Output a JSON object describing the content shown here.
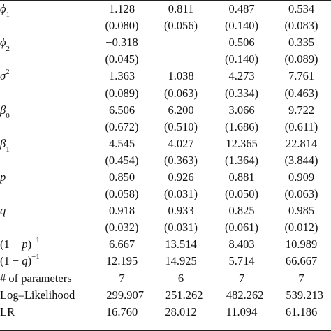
{
  "table": {
    "rows": [
      {
        "label": "ϕ1",
        "values": [
          "1.128",
          "0.811",
          "0.487",
          "0.534"
        ]
      },
      {
        "label": "",
        "values": [
          "(0.080)",
          "(0.056)",
          "(0.140)",
          "(0.083)"
        ]
      },
      {
        "label": "ϕ2",
        "values": [
          "−0.318",
          "",
          "0.506",
          "0.335"
        ]
      },
      {
        "label": "",
        "values": [
          "(0.045)",
          "",
          "(0.140)",
          "(0.089)"
        ]
      },
      {
        "label": "σ2",
        "values": [
          "1.363",
          "1.038",
          "4.273",
          "7.761"
        ]
      },
      {
        "label": "",
        "values": [
          "(0.089)",
          "(0.063)",
          "(0.334)",
          "(0.463)"
        ]
      },
      {
        "label": "β0",
        "values": [
          "6.506",
          "6.200",
          "3.066",
          "9.722"
        ]
      },
      {
        "label": "",
        "values": [
          "(0.672)",
          "(0.510)",
          "(1.686)",
          "(0.611)"
        ]
      },
      {
        "label": "β1",
        "values": [
          "4.545",
          "4.027",
          "12.365",
          "22.814"
        ]
      },
      {
        "label": "",
        "values": [
          "(0.454)",
          "(0.363)",
          "(1.364)",
          "(3.844)"
        ]
      },
      {
        "label": "p",
        "values": [
          "0.850",
          "0.926",
          "0.881",
          "0.909"
        ]
      },
      {
        "label": "",
        "values": [
          "(0.058)",
          "(0.031)",
          "(0.050)",
          "(0.063)"
        ]
      },
      {
        "label": "q",
        "values": [
          "0.918",
          "0.933",
          "0.825",
          "0.985"
        ]
      },
      {
        "label": "",
        "values": [
          "(0.032)",
          "(0.031)",
          "(0.061)",
          "(0.012)"
        ]
      },
      {
        "label": "(1 − p)−1",
        "values": [
          "6.667",
          "13.514",
          "8.403",
          "10.989"
        ]
      },
      {
        "label": "(1 − q)−1",
        "values": [
          "12.195",
          "14.925",
          "5.714",
          "66.667"
        ]
      },
      {
        "label": "# of parameters",
        "values": [
          "7",
          "6",
          "7",
          "7"
        ]
      },
      {
        "label": "Log–Likelihood",
        "values": [
          "−299.907",
          "−251.262",
          "−482.262",
          "−539.213"
        ]
      },
      {
        "label": "LR",
        "values": [
          "16.760",
          "28.012",
          "11.094",
          "61.186"
        ]
      }
    ]
  }
}
